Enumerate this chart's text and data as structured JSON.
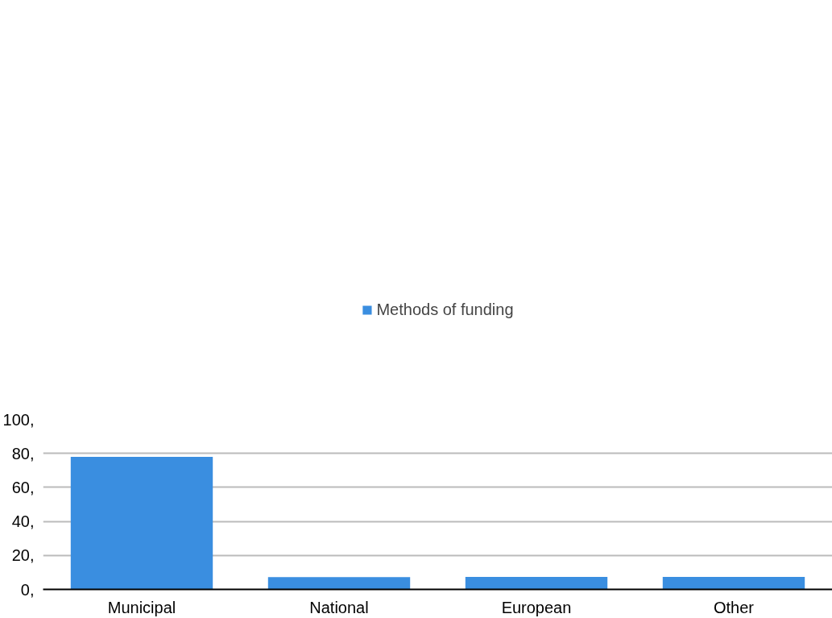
{
  "chart_data": {
    "type": "bar",
    "categories": [
      "Municipal",
      "National",
      "European",
      "Other"
    ],
    "series": [
      {
        "name": "Methods of funding",
        "color": "#3a8ee0",
        "values": [
          78,
          7.2,
          7.3,
          7.3
        ]
      }
    ],
    "ylim": [
      0,
      100
    ],
    "yticks": [
      {
        "value": 0,
        "label": "0,"
      },
      {
        "value": 20,
        "label": "20,"
      },
      {
        "value": 40,
        "label": "40,"
      },
      {
        "value": 60,
        "label": "60,"
      },
      {
        "value": 80,
        "label": "80,"
      },
      {
        "value": 100,
        "label": "100,"
      }
    ],
    "grid": "y",
    "legend": "top"
  }
}
